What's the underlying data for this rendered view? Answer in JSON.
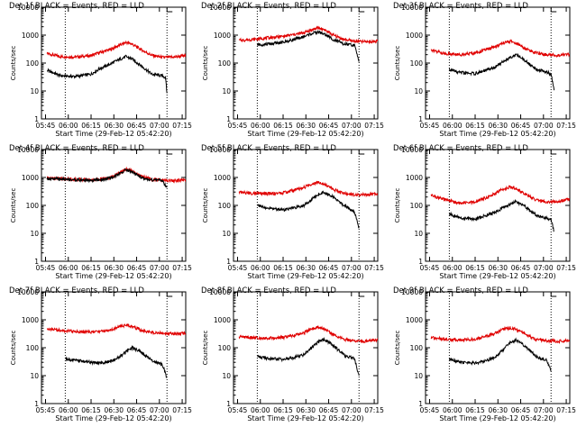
{
  "colors": {
    "events": "#000000",
    "lld": "#e00000",
    "frame": "#000000"
  },
  "chart_data": [
    {
      "type": "line",
      "title": "Det 1f BLACK = Events, RED = LLD",
      "xlabel": "Start Time (29-Feb-12 05:42:20)",
      "ylabel": "Counts/sec",
      "x_ticks": [
        "05:45",
        "06:00",
        "06:15",
        "06:30",
        "06:45",
        "07:00",
        "07:15"
      ],
      "y_ticks": [
        "1",
        "10",
        "100",
        "1000",
        "10000"
      ],
      "y_scale": "log",
      "ylim": [
        1,
        10000
      ],
      "xlim_minutes": [
        0,
        95
      ],
      "time_markers": [
        "05:58",
        "07:05"
      ],
      "series": [
        {
          "name": "LLD",
          "color": "red",
          "x": [
            "05:46",
            "05:55",
            "06:05",
            "06:15",
            "06:20",
            "06:28",
            "06:33",
            "06:38",
            "06:42",
            "06:48",
            "06:55",
            "07:02",
            "07:10",
            "07:18"
          ],
          "y": [
            220,
            170,
            165,
            185,
            230,
            310,
            420,
            550,
            480,
            300,
            190,
            160,
            165,
            185
          ]
        },
        {
          "name": "Events",
          "color": "black",
          "x": [
            "05:46",
            "05:55",
            "06:05",
            "06:15",
            "06:20",
            "06:28",
            "06:33",
            "06:38",
            "06:42",
            "06:48",
            "06:55",
            "07:02",
            "07:04",
            "07:05"
          ],
          "y": [
            55,
            35,
            33,
            40,
            60,
            95,
            130,
            170,
            140,
            80,
            40,
            35,
            30,
            8
          ]
        }
      ]
    },
    {
      "type": "line",
      "title": "Det 2f BLACK = Events, RED = LLD",
      "xlabel": "Start Time (29-Feb-12 05:42:20)",
      "ylabel": "Counts/sec",
      "x_ticks": [
        "05:45",
        "06:00",
        "06:15",
        "06:30",
        "06:45",
        "07:00",
        "07:15"
      ],
      "y_ticks": [
        "1",
        "10",
        "100",
        "1000",
        "10000"
      ],
      "y_scale": "log",
      "ylim": [
        1,
        10000
      ],
      "xlim_minutes": [
        0,
        95
      ],
      "time_markers": [
        "05:58",
        "07:05"
      ],
      "series": [
        {
          "name": "LLD",
          "color": "red",
          "x": [
            "05:46",
            "05:55",
            "06:05",
            "06:15",
            "06:20",
            "06:28",
            "06:33",
            "06:38",
            "06:42",
            "06:48",
            "06:55",
            "07:02",
            "07:10",
            "07:18"
          ],
          "y": [
            650,
            700,
            800,
            900,
            1000,
            1200,
            1500,
            1800,
            1600,
            1000,
            700,
            600,
            580,
            600
          ]
        },
        {
          "name": "Events",
          "color": "black",
          "x": [
            "05:58",
            "06:05",
            "06:15",
            "06:20",
            "06:28",
            "06:33",
            "06:38",
            "06:42",
            "06:48",
            "06:55",
            "07:02",
            "07:05"
          ],
          "y": [
            450,
            480,
            550,
            650,
            850,
            1100,
            1300,
            1100,
            700,
            480,
            430,
            120
          ]
        }
      ]
    },
    {
      "type": "line",
      "title": "Det 3f BLACK = Events, RED = LLD",
      "xlabel": "Start Time (29-Feb-12 05:42:20)",
      "ylabel": "Counts/sec",
      "x_ticks": [
        "05:45",
        "06:00",
        "06:15",
        "06:30",
        "06:45",
        "07:00",
        "07:15"
      ],
      "y_ticks": [
        "1",
        "10",
        "100",
        "1000",
        "10000"
      ],
      "y_scale": "log",
      "ylim": [
        1,
        10000
      ],
      "xlim_minutes": [
        0,
        95
      ],
      "time_markers": [
        "05:58",
        "07:05"
      ],
      "series": [
        {
          "name": "LLD",
          "color": "red",
          "x": [
            "05:46",
            "05:55",
            "06:05",
            "06:15",
            "06:20",
            "06:28",
            "06:33",
            "06:38",
            "06:42",
            "06:48",
            "06:55",
            "07:02",
            "07:10",
            "07:18"
          ],
          "y": [
            300,
            220,
            200,
            230,
            280,
            380,
            500,
            600,
            520,
            330,
            230,
            200,
            190,
            210
          ]
        },
        {
          "name": "Events",
          "color": "black",
          "x": [
            "05:58",
            "06:05",
            "06:15",
            "06:20",
            "06:28",
            "06:33",
            "06:38",
            "06:42",
            "06:48",
            "06:55",
            "07:02",
            "07:05",
            "07:07"
          ],
          "y": [
            60,
            45,
            42,
            50,
            70,
            110,
            160,
            200,
            120,
            60,
            48,
            40,
            10
          ]
        }
      ]
    },
    {
      "type": "line",
      "title": "Det 4f BLACK = Events, RED = LLD",
      "xlabel": "Start Time (29-Feb-12 05:42:20)",
      "ylabel": "Counts/sec",
      "x_ticks": [
        "05:45",
        "06:00",
        "06:15",
        "06:30",
        "06:45",
        "07:00",
        "07:15"
      ],
      "y_ticks": [
        "1",
        "10",
        "100",
        "1000",
        "10000"
      ],
      "y_scale": "log",
      "ylim": [
        1,
        10000
      ],
      "xlim_minutes": [
        0,
        95
      ],
      "time_markers": [
        "05:58",
        "07:05"
      ],
      "series": [
        {
          "name": "LLD",
          "color": "red",
          "x": [
            "05:46",
            "05:55",
            "06:05",
            "06:15",
            "06:20",
            "06:28",
            "06:33",
            "06:38",
            "06:42",
            "06:48",
            "06:55",
            "07:02",
            "07:10",
            "07:18"
          ],
          "y": [
            950,
            920,
            850,
            820,
            850,
            1000,
            1400,
            2000,
            1700,
            1100,
            850,
            800,
            780,
            800
          ]
        },
        {
          "name": "Events",
          "color": "black",
          "x": [
            "05:46",
            "05:55",
            "06:05",
            "06:15",
            "06:20",
            "06:28",
            "06:33",
            "06:38",
            "06:42",
            "06:48",
            "06:55",
            "07:02",
            "07:05"
          ],
          "y": [
            900,
            880,
            820,
            790,
            820,
            950,
            1300,
            1900,
            1600,
            1000,
            820,
            780,
            400
          ]
        }
      ]
    },
    {
      "type": "line",
      "title": "Det 5f BLACK = Events, RED = LLD",
      "xlabel": "Start Time (29-Feb-12 05:42:20)",
      "ylabel": "Counts/sec",
      "x_ticks": [
        "05:45",
        "06:00",
        "06:15",
        "06:30",
        "06:45",
        "07:00",
        "07:15"
      ],
      "y_ticks": [
        "1",
        "10",
        "100",
        "1000",
        "10000"
      ],
      "y_scale": "log",
      "ylim": [
        1,
        10000
      ],
      "xlim_minutes": [
        0,
        95
      ],
      "time_markers": [
        "05:58",
        "07:05"
      ],
      "series": [
        {
          "name": "LLD",
          "color": "red",
          "x": [
            "05:46",
            "05:55",
            "06:05",
            "06:15",
            "06:20",
            "06:28",
            "06:33",
            "06:38",
            "06:42",
            "06:48",
            "06:55",
            "07:02",
            "07:10",
            "07:18"
          ],
          "y": [
            300,
            270,
            260,
            280,
            330,
            420,
            560,
            700,
            600,
            380,
            270,
            240,
            240,
            260
          ]
        },
        {
          "name": "Events",
          "color": "black",
          "x": [
            "05:58",
            "06:05",
            "06:15",
            "06:20",
            "06:28",
            "06:33",
            "06:38",
            "06:42",
            "06:48",
            "06:55",
            "07:02",
            "07:05"
          ],
          "y": [
            100,
            80,
            70,
            75,
            95,
            150,
            250,
            300,
            200,
            100,
            60,
            15
          ]
        }
      ]
    },
    {
      "type": "line",
      "title": "Det 6f BLACK = Events, RED = LLD",
      "xlabel": "Start Time (29-Feb-12 05:42:20)",
      "ylabel": "Counts/sec",
      "x_ticks": [
        "05:45",
        "06:00",
        "06:15",
        "06:30",
        "06:45",
        "07:00",
        "07:15"
      ],
      "y_ticks": [
        "1",
        "10",
        "100",
        "1000",
        "10000"
      ],
      "y_scale": "log",
      "ylim": [
        1,
        10000
      ],
      "xlim_minutes": [
        0,
        95
      ],
      "time_markers": [
        "05:58",
        "07:05"
      ],
      "series": [
        {
          "name": "LLD",
          "color": "red",
          "x": [
            "05:46",
            "05:55",
            "06:05",
            "06:15",
            "06:20",
            "06:28",
            "06:33",
            "06:38",
            "06:42",
            "06:48",
            "06:55",
            "07:02",
            "07:10",
            "07:18"
          ],
          "y": [
            230,
            160,
            120,
            130,
            170,
            260,
            380,
            460,
            400,
            250,
            160,
            130,
            140,
            170
          ]
        },
        {
          "name": "Events",
          "color": "black",
          "x": [
            "05:58",
            "06:05",
            "06:15",
            "06:20",
            "06:28",
            "06:33",
            "06:38",
            "06:42",
            "06:48",
            "06:55",
            "07:02",
            "07:05",
            "07:07"
          ],
          "y": [
            50,
            35,
            32,
            40,
            55,
            80,
            110,
            140,
            90,
            45,
            35,
            30,
            12
          ]
        }
      ]
    },
    {
      "type": "line",
      "title": "Det 7f BLACK = Events, RED = LLD",
      "xlabel": "Start Time (29-Feb-12 05:42:20)",
      "ylabel": "Counts/sec",
      "x_ticks": [
        "05:45",
        "06:00",
        "06:15",
        "06:30",
        "06:45",
        "07:00",
        "07:15"
      ],
      "y_ticks": [
        "1",
        "10",
        "100",
        "1000",
        "10000"
      ],
      "y_scale": "log",
      "ylim": [
        1,
        10000
      ],
      "xlim_minutes": [
        0,
        95
      ],
      "time_markers": [
        "05:58",
        "07:05"
      ],
      "series": [
        {
          "name": "LLD",
          "color": "red",
          "x": [
            "05:46",
            "05:55",
            "06:05",
            "06:15",
            "06:20",
            "06:28",
            "06:33",
            "06:38",
            "06:42",
            "06:48",
            "06:55",
            "07:02",
            "07:10",
            "07:18"
          ],
          "y": [
            480,
            420,
            380,
            360,
            380,
            440,
            550,
            650,
            580,
            420,
            360,
            330,
            320,
            340
          ]
        },
        {
          "name": "Events",
          "color": "black",
          "x": [
            "05:58",
            "06:05",
            "06:15",
            "06:20",
            "06:28",
            "06:33",
            "06:38",
            "06:42",
            "06:48",
            "06:55",
            "07:02",
            "07:05"
          ],
          "y": [
            40,
            35,
            30,
            28,
            32,
            45,
            70,
            100,
            70,
            35,
            25,
            8
          ]
        }
      ]
    },
    {
      "type": "line",
      "title": "Det 8f BLACK = Events, RED = LLD",
      "xlabel": "Start Time (29-Feb-12 05:42:20)",
      "ylabel": "Counts/sec",
      "x_ticks": [
        "05:45",
        "06:00",
        "06:15",
        "06:30",
        "06:45",
        "07:00",
        "07:15"
      ],
      "y_ticks": [
        "1",
        "10",
        "100",
        "1000",
        "10000"
      ],
      "y_scale": "log",
      "ylim": [
        1,
        10000
      ],
      "xlim_minutes": [
        0,
        95
      ],
      "time_markers": [
        "05:58",
        "07:05"
      ],
      "series": [
        {
          "name": "LLD",
          "color": "red",
          "x": [
            "05:46",
            "05:55",
            "06:05",
            "06:15",
            "06:20",
            "06:28",
            "06:33",
            "06:38",
            "06:42",
            "06:48",
            "06:55",
            "07:02",
            "07:10",
            "07:18"
          ],
          "y": [
            250,
            230,
            220,
            230,
            260,
            330,
            450,
            550,
            480,
            300,
            200,
            170,
            170,
            190
          ]
        },
        {
          "name": "Events",
          "color": "black",
          "x": [
            "05:58",
            "06:05",
            "06:15",
            "06:20",
            "06:28",
            "06:33",
            "06:38",
            "06:42",
            "06:48",
            "06:55",
            "07:02",
            "07:05"
          ],
          "y": [
            50,
            40,
            38,
            42,
            55,
            90,
            160,
            200,
            120,
            55,
            40,
            10
          ]
        }
      ]
    },
    {
      "type": "line",
      "title": "Det 9f BLACK = Events, RED = LLD",
      "xlabel": "Start Time (29-Feb-12 05:42:20)",
      "ylabel": "Counts/sec",
      "x_ticks": [
        "05:45",
        "06:00",
        "06:15",
        "06:30",
        "06:45",
        "07:00",
        "07:15"
      ],
      "y_ticks": [
        "1",
        "10",
        "100",
        "1000",
        "10000"
      ],
      "y_scale": "log",
      "ylim": [
        1,
        10000
      ],
      "xlim_minutes": [
        0,
        95
      ],
      "time_markers": [
        "05:58",
        "07:05"
      ],
      "series": [
        {
          "name": "LLD",
          "color": "red",
          "x": [
            "05:46",
            "05:55",
            "06:05",
            "06:15",
            "06:20",
            "06:28",
            "06:33",
            "06:38",
            "06:42",
            "06:48",
            "06:55",
            "07:02",
            "07:10",
            "07:18"
          ],
          "y": [
            230,
            200,
            190,
            200,
            240,
            320,
            450,
            520,
            460,
            300,
            200,
            180,
            170,
            190
          ]
        },
        {
          "name": "Events",
          "color": "black",
          "x": [
            "05:58",
            "06:05",
            "06:15",
            "06:20",
            "06:28",
            "06:33",
            "06:38",
            "06:42",
            "06:48",
            "06:55",
            "07:02",
            "07:05"
          ],
          "y": [
            40,
            30,
            28,
            32,
            45,
            80,
            150,
            190,
            110,
            50,
            35,
            15
          ]
        }
      ]
    }
  ]
}
